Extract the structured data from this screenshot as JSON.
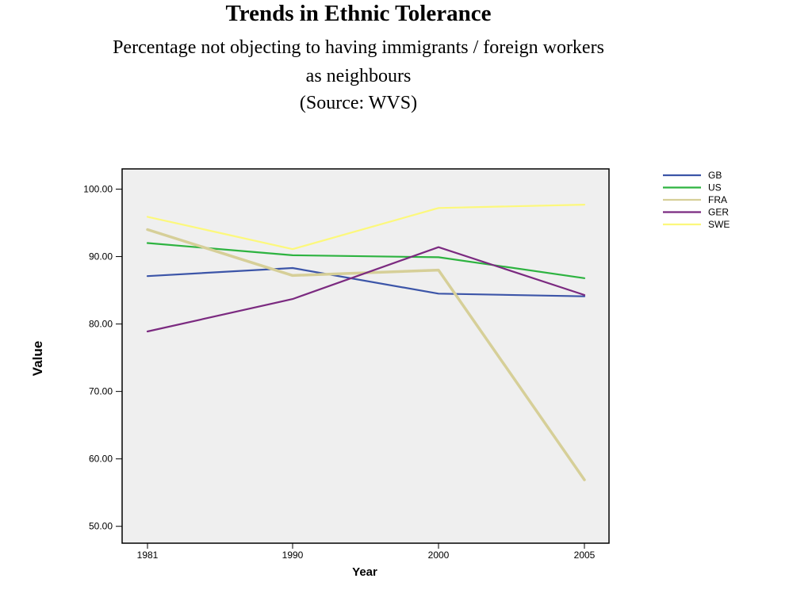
{
  "chart_data": {
    "type": "line",
    "title": "Trends in Ethnic Tolerance",
    "subtitle_lines": [
      "Percentage not objecting to having immigrants / foreign workers",
      "as neighbours",
      "(Source: WVS)"
    ],
    "xlabel": "Year",
    "ylabel": "Value",
    "categories": [
      "1981",
      "1990",
      "2000",
      "2005"
    ],
    "ylim": [
      47.5,
      103
    ],
    "yticks": [
      "50.00",
      "60.00",
      "70.00",
      "80.00",
      "90.00",
      "100.00"
    ],
    "ytick_values": [
      50,
      60,
      70,
      80,
      90,
      100
    ],
    "grid": false,
    "legend_position": "top-right",
    "series": [
      {
        "name": "GB",
        "color": "#3c55a8",
        "values": [
          87.1,
          88.3,
          84.5,
          84.1
        ]
      },
      {
        "name": "US",
        "color": "#2db340",
        "values": [
          92.0,
          90.2,
          89.9,
          86.8
        ]
      },
      {
        "name": "FRA",
        "color": "#d6cf98",
        "values": [
          94.0,
          87.2,
          88.0,
          56.9
        ]
      },
      {
        "name": "GER",
        "color": "#7b2a80",
        "values": [
          78.9,
          83.7,
          91.4,
          84.3
        ]
      },
      {
        "name": "SWE",
        "color": "#fcf87c",
        "values": [
          95.9,
          91.1,
          97.2,
          97.7
        ]
      }
    ]
  }
}
